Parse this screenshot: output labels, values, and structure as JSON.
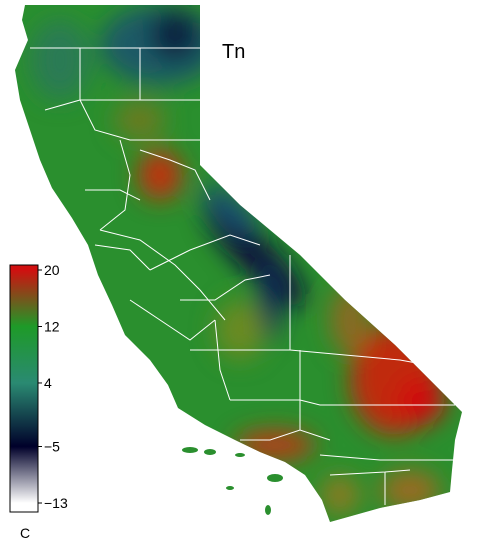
{
  "map": {
    "title": "Tn",
    "colorbar": {
      "unit": "C",
      "ticks": [
        20,
        12,
        4,
        {
          "value": -5,
          "label": "−5"
        },
        {
          "value": -13,
          "label": "−13"
        }
      ],
      "colors": [
        "#d01010",
        "#1e9a28",
        "#2a8a72",
        "#00002a",
        "#ffffff"
      ]
    }
  }
}
